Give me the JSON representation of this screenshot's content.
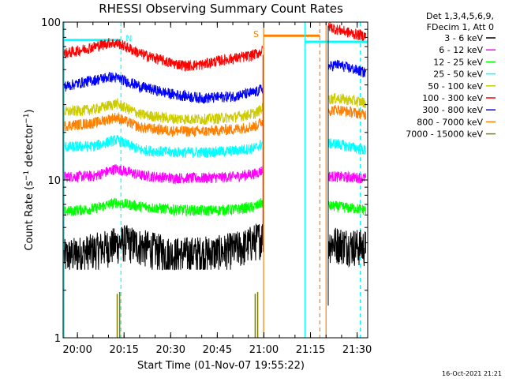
{
  "chart_data": {
    "type": "line",
    "title": "RHESSI Observing Summary Count Rates",
    "xlabel": "Start Time (01-Nov-07 19:55:22)",
    "ylabel": "Count Rate (s⁻¹ detector⁻¹)",
    "y_scale": "log",
    "ylim": [
      1,
      100
    ],
    "xlim_minutes_since_start": [
      0,
      98
    ],
    "x_tick_labels": [
      "20:00",
      "20:15",
      "20:30",
      "20:45",
      "21:00",
      "21:15",
      "21:30"
    ],
    "x_tick_minutes": [
      4.6,
      19.6,
      34.6,
      49.6,
      64.6,
      79.6,
      94.6
    ],
    "y_tick_labels": [
      "1",
      "10",
      "100"
    ],
    "y_tick_values": [
      1,
      10,
      100
    ],
    "grid": false,
    "legend_position": "right",
    "legend_header": [
      "Det 1,3,4,5,6,9,",
      "FDecim 1, Att 0"
    ],
    "timestamp": "16-Oct-2021 21:21",
    "series": [
      {
        "name": "3 - 6 keV",
        "color": "#000000",
        "style": "noisy-discrete",
        "x": [
          0,
          10,
          20,
          35,
          50,
          58,
          64,
          88,
          97
        ],
        "y": [
          3.3,
          3.6,
          4.1,
          3.4,
          3.5,
          3.8,
          4.4,
          4.0,
          3.8
        ]
      },
      {
        "name": "6 - 12 keV",
        "color": "#ff00ff",
        "x": [
          0,
          10,
          17,
          25,
          35,
          45,
          55,
          62,
          64,
          88,
          97
        ],
        "y": [
          10.5,
          10.6,
          11.8,
          10.7,
          10.3,
          10.3,
          10.5,
          11.0,
          11.5,
          10.5,
          10.3
        ]
      },
      {
        "name": "12 - 25 keV",
        "color": "#00ff00",
        "x": [
          0,
          10,
          17,
          25,
          35,
          45,
          55,
          62,
          64,
          88,
          97
        ],
        "y": [
          6.3,
          6.6,
          7.2,
          6.8,
          6.5,
          6.4,
          6.5,
          6.8,
          7.2,
          6.8,
          6.5
        ]
      },
      {
        "name": "25 - 50 keV",
        "color": "#00ffff",
        "x": [
          0,
          10,
          17,
          25,
          35,
          45,
          55,
          62,
          64,
          88,
          97
        ],
        "y": [
          16.2,
          16.4,
          18.0,
          15.5,
          15.0,
          15.0,
          15.3,
          16.0,
          17.0,
          17.0,
          15.5
        ]
      },
      {
        "name": "50 - 100 keV",
        "color": "#cccc00",
        "x": [
          0,
          10,
          17,
          25,
          35,
          45,
          55,
          62,
          64,
          88,
          97
        ],
        "y": [
          27.0,
          28.0,
          30.5,
          26.0,
          24.5,
          24.3,
          25.0,
          26.5,
          28.5,
          33.0,
          31.0
        ]
      },
      {
        "name": "100 - 300 keV",
        "color": "#ff0000",
        "x": [
          0,
          5,
          10,
          15,
          18,
          25,
          35,
          40,
          45,
          50,
          55,
          60,
          63,
          64,
          85,
          88,
          94,
          97
        ],
        "y": [
          63,
          66,
          70,
          74,
          73,
          63,
          55,
          53,
          54,
          57,
          59,
          61,
          64,
          66,
          95,
          90,
          84,
          82
        ]
      },
      {
        "name": "300 - 800 keV",
        "color": "#0000ff",
        "x": [
          0,
          5,
          10,
          15,
          18,
          25,
          35,
          45,
          55,
          62,
          64,
          88,
          97
        ],
        "y": [
          39,
          41,
          43,
          45,
          44,
          39,
          35,
          33,
          34,
          36,
          38,
          54,
          48
        ]
      },
      {
        "name": "800 - 7000 keV",
        "color": "#ff8000",
        "x": [
          0,
          10,
          17,
          25,
          35,
          45,
          55,
          62,
          64,
          88,
          97
        ],
        "y": [
          22.0,
          23.0,
          25.0,
          21.5,
          20.5,
          20.3,
          21.0,
          22.0,
          23.5,
          28.0,
          26.0
        ]
      },
      {
        "name": "7000 - 15000 keV",
        "color": "#808000",
        "style": "spikes",
        "x": [
          17.4,
          18.2,
          61.8,
          62.6
        ],
        "y": [
          1.9,
          1.95,
          1.9,
          1.95
        ]
      }
    ],
    "annotations": [
      {
        "type": "horizontal-bar",
        "label": "N",
        "color": "#00ffff",
        "x": [
          0,
          18.6
        ],
        "y": 77
      },
      {
        "type": "horizontal-bar",
        "label": "S",
        "color": "#ff8000",
        "x": [
          64.5,
          82.6
        ],
        "y": 82
      },
      {
        "type": "horizontal-bar",
        "label": "",
        "color": "#00ffff",
        "x": [
          77.8,
          98
        ],
        "y": 75
      },
      {
        "type": "vertical-line",
        "color": "#00ffff",
        "x": 0.3,
        "dashed": false
      },
      {
        "type": "vertical-line",
        "color": "#00ffff",
        "x": 18.6,
        "dashed": true
      },
      {
        "type": "vertical-line",
        "color": "#ff8000",
        "x": 64.5,
        "dashed": false
      },
      {
        "type": "vertical-line",
        "color": "#00ffff",
        "x": 77.8,
        "dashed": false
      },
      {
        "type": "vertical-line",
        "color": "#ff8000",
        "x": 82.6,
        "dashed": true
      },
      {
        "type": "vertical-line",
        "color": "#ff8000",
        "x": 84.6,
        "dashed": false
      },
      {
        "type": "vertical-line",
        "color": "#00ffff",
        "x": 95.6,
        "dashed": true
      }
    ]
  }
}
